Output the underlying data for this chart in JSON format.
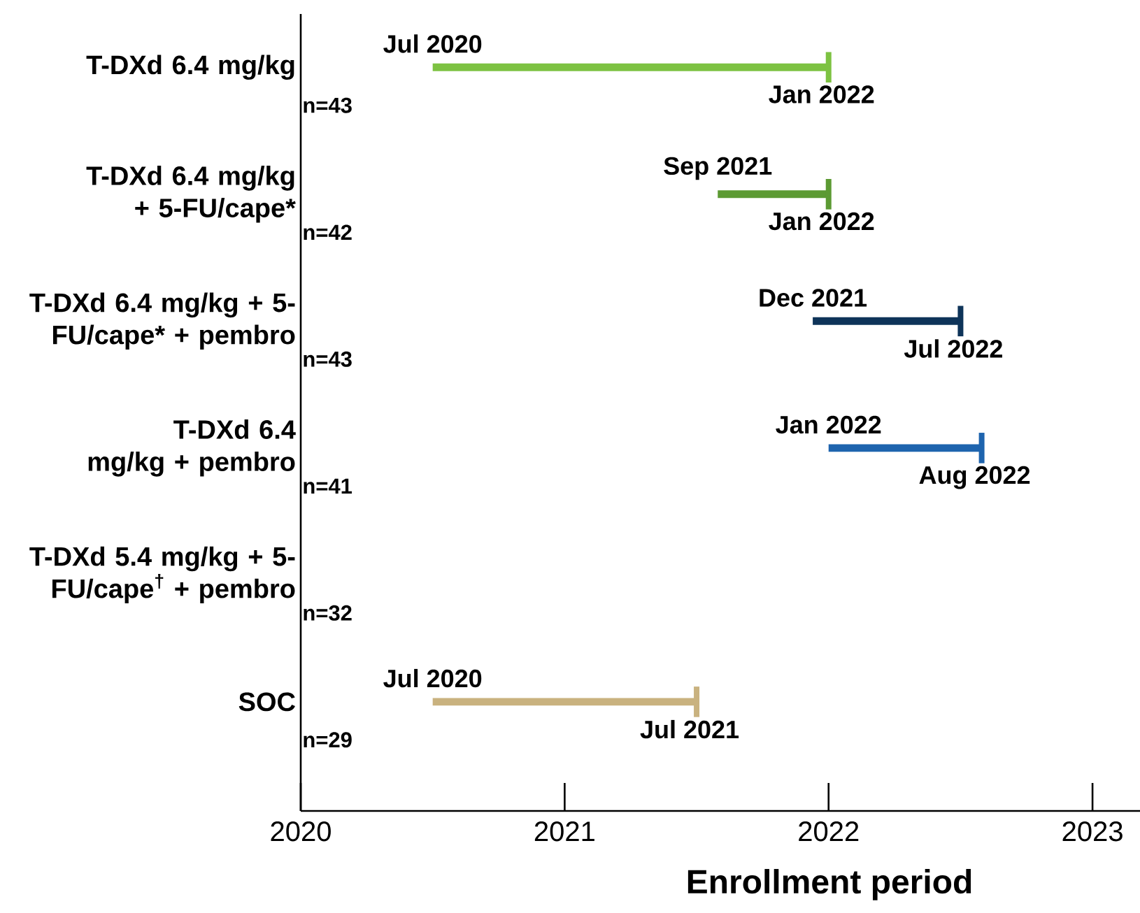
{
  "chart_data": {
    "type": "bar",
    "orientation": "horizontal",
    "xlabel": "Enrollment period",
    "categories": [
      "T-DXd 6.4 mg/kg",
      "T-DXd 6.4 mg/kg + 5-FU/cape*",
      "T-DXd 6.4 mg/kg + 5-FU/cape* + pembro",
      "T-DXd 6.4 mg/kg + pembro",
      "T-DXd 5.4 mg/kg + 5-FU/cape$^{†}$ + pembro",
      "SOC"
    ],
    "base": [
      2020.5,
      2021.58,
      2021.94,
      2022.0,
      null,
      2020.5
    ],
    "values": [
      1.5,
      0.42,
      0.56,
      0.58,
      null,
      1.0
    ],
    "colors": [
      "#7dc242",
      "#5c9a33",
      "#0e3459",
      "#1e64ae",
      null,
      "#c9b27f"
    ],
    "xlim": [
      2020,
      2023.18
    ],
    "xticks": [
      2020,
      2021,
      2022,
      2023
    ],
    "grid": false,
    "annotations": [
      {
        "text": "Jul 2020",
        "x": 2020.5,
        "y": "T-DXd 6.4 mg/kg"
      },
      {
        "text": "Jan 2022",
        "x": 2022.0,
        "y": "T-DXd 6.4 mg/kg"
      },
      {
        "text": "Sep 2021",
        "x": 2021.58,
        "y": "T-DXd 6.4 mg/kg + 5-FU/cape*"
      },
      {
        "text": "Jan 2022",
        "x": 2022.0,
        "y": "T-DXd 6.4 mg/kg + 5-FU/cape*"
      },
      {
        "text": "Dec 2021",
        "x": 2021.94,
        "y": "T-DXd 6.4 mg/kg + 5-FU/cape* + pembro"
      },
      {
        "text": "Jul 2022",
        "x": 2022.5,
        "y": "T-DXd 6.4 mg/kg + 5-FU/cape* + pembro"
      },
      {
        "text": "Jan 2022",
        "x": 2022.0,
        "y": "T-DXd 6.4 mg/kg + pembro"
      },
      {
        "text": "Aug 2022",
        "x": 2022.58,
        "y": "T-DXd 6.4 mg/kg + pembro"
      },
      {
        "text": "Jul 2020",
        "x": 2020.5,
        "y": "SOC"
      },
      {
        "text": "Jul 2021",
        "x": 2021.5,
        "y": "SOC"
      },
      "n=43",
      "n=42",
      "n=43",
      "n=41",
      "n=32",
      "n=29"
    ]
  }
}
